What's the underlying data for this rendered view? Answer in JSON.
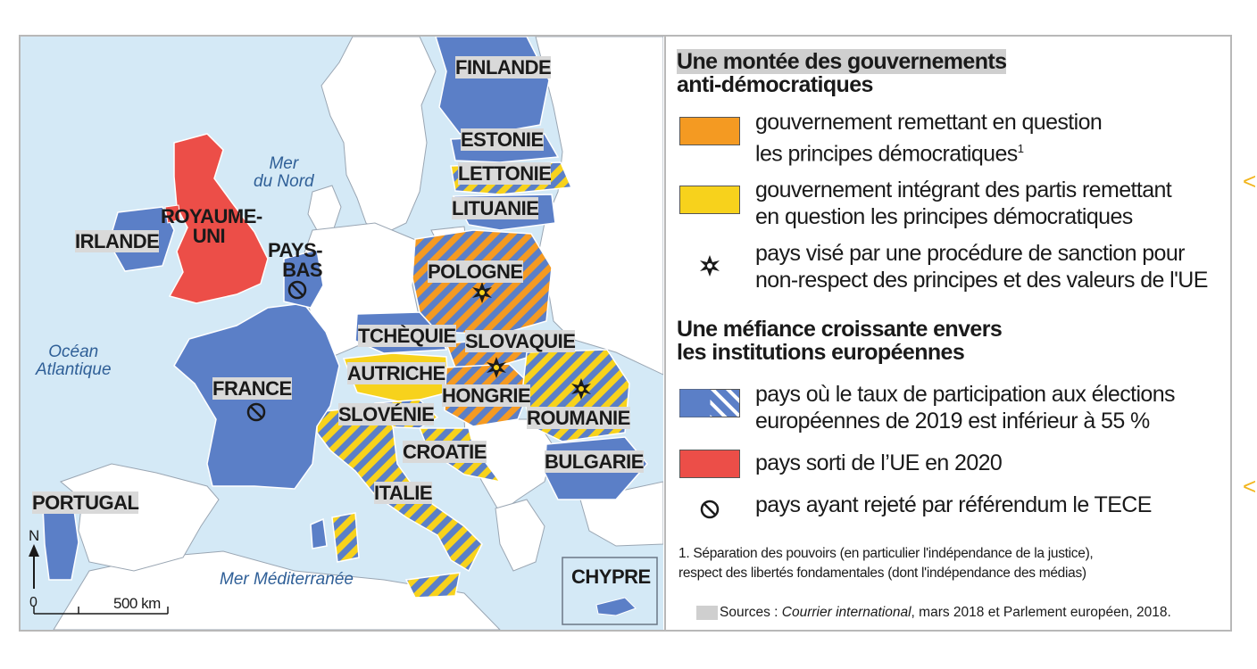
{
  "colors": {
    "sea": "#d4e9f6",
    "land_other": "#ffffff",
    "low_turnout_blue": "#5b7fc7",
    "orange": "#f49a22",
    "yellow": "#f7d21c",
    "brexit_red": "#ec4e48",
    "coast": "#9aa6b3"
  },
  "map": {
    "seas": {
      "north_sea": [
        "Mer",
        "du Nord"
      ],
      "atlantic": [
        "Océan",
        "Atlantique"
      ],
      "mediterranean": "Mer Méditerranée"
    },
    "countries": {
      "finlande": "FINLANDE",
      "estonie": "ESTONIE",
      "lettonie": "LETTONIE",
      "lituanie": "LITUANIE",
      "royaume_uni": [
        "ROYAUME-",
        "UNI"
      ],
      "irlande": "IRLANDE",
      "pays_bas": [
        "PAYS-",
        "BAS"
      ],
      "pologne": "POLOGNE",
      "tchequie": "TCHÈQUIE",
      "slovaquie": "SLOVAQUIE",
      "autriche": "AUTRICHE",
      "hongrie": "HONGRIE",
      "roumanie": "ROUMANIE",
      "slovenie": "SLOVÉNIE",
      "croatie": "CROATIE",
      "france": "FRANCE",
      "bulgarie": "BULGARIE",
      "italie": "ITALIE",
      "portugal": "PORTUGAL",
      "chypre": "CHYPRE"
    },
    "north": "N",
    "scale_zero": "0",
    "scale_label": "500 km"
  },
  "legend": {
    "section1_title": [
      "Une montée des gouvernements",
      "anti-démocratiques"
    ],
    "orange_text": [
      "gouvernement remettant en question",
      "les principes démocratiques"
    ],
    "orange_footnote_mark": "1",
    "yellow_text": [
      "gouvernement intégrant des partis remettant",
      "en question les principes démocratiques"
    ],
    "sanction_text": [
      "pays visé par une procédure de sanction pour",
      "non-respect des principes et des valeurs de l'UE"
    ],
    "section2_title": [
      "Une méfiance croissante envers",
      "les institutions européennes"
    ],
    "turnout_text": [
      "pays où le taux de participation aux élections",
      "européennes de 2019 est inférieur à 55 %"
    ],
    "brexit_text": "pays sorti de l’UE en 2020",
    "tece_text": "pays ayant rejeté par référendum le TECE",
    "footnote": [
      "1. Séparation des pouvoirs (en particulier l'indépendance de la justice),",
      "respect des libertés fondamentales (dont l'indépendance des médias)"
    ],
    "sources_label": "Sources :",
    "sources_italic": "Courrier international",
    "sources_rest": ", mars 2018 et Parlement européen, 2018."
  }
}
